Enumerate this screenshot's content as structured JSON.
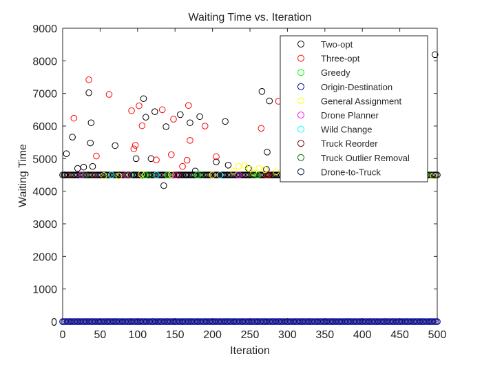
{
  "chart_data": {
    "type": "scatter",
    "title": "Waiting Time vs. Iteration",
    "xlabel": "Iteration",
    "ylabel": "Waiting Time",
    "xlim": [
      0,
      500
    ],
    "ylim": [
      0,
      9000
    ],
    "x_ticks": [
      0,
      50,
      100,
      150,
      200,
      250,
      300,
      350,
      400,
      450,
      500
    ],
    "y_ticks": [
      0,
      1000,
      2000,
      3000,
      4000,
      5000,
      6000,
      7000,
      8000,
      9000
    ],
    "grid": false,
    "legend_position": "top-right",
    "series": [
      {
        "name": "Two-opt",
        "color": "#000000",
        "marker": "circle-open",
        "points": [
          [
            5,
            5150
          ],
          [
            13,
            5660
          ],
          [
            20,
            4700
          ],
          [
            28,
            4740
          ],
          [
            35,
            7020
          ],
          [
            37,
            5480
          ],
          [
            38,
            6100
          ],
          [
            40,
            4760
          ],
          [
            70,
            5400
          ],
          [
            98,
            5000
          ],
          [
            108,
            6840
          ],
          [
            111,
            6270
          ],
          [
            118,
            5000
          ],
          [
            123,
            6440
          ],
          [
            135,
            4170
          ],
          [
            138,
            5980
          ],
          [
            157,
            6350
          ],
          [
            170,
            6100
          ],
          [
            177,
            4620
          ],
          [
            183,
            6290
          ],
          [
            205,
            4900
          ],
          [
            217,
            6140
          ],
          [
            221,
            4800
          ],
          [
            248,
            4700
          ],
          [
            266,
            7060
          ],
          [
            272,
            4670
          ],
          [
            273,
            5200
          ],
          [
            276,
            6770
          ],
          [
            497,
            8190
          ]
        ]
      },
      {
        "name": "Three-opt",
        "color": "#ff0000",
        "marker": "circle-open",
        "points": [
          [
            15,
            6240
          ],
          [
            35,
            7420
          ],
          [
            45,
            5080
          ],
          [
            62,
            6970
          ],
          [
            92,
            6470
          ],
          [
            95,
            5300
          ],
          [
            97,
            5410
          ],
          [
            102,
            6620
          ],
          [
            106,
            6010
          ],
          [
            125,
            4960
          ],
          [
            133,
            6500
          ],
          [
            145,
            5120
          ],
          [
            148,
            6210
          ],
          [
            160,
            4760
          ],
          [
            166,
            4950
          ],
          [
            168,
            6630
          ],
          [
            170,
            5560
          ],
          [
            190,
            6000
          ],
          [
            205,
            5060
          ],
          [
            265,
            5930
          ],
          [
            288,
            6760
          ],
          [
            273,
            4500
          ]
        ]
      },
      {
        "name": "Greedy",
        "color": "#00ff00",
        "marker": "circle-open",
        "points": [
          [
            90,
            4500
          ],
          [
            110,
            4500
          ],
          [
            140,
            4500
          ],
          [
            180,
            4500
          ],
          [
            260,
            4500
          ],
          [
            300,
            4500
          ],
          [
            345,
            4500
          ],
          [
            380,
            4500
          ],
          [
            420,
            4500
          ],
          [
            460,
            4500
          ]
        ]
      },
      {
        "name": "Origin-Destination",
        "color": "#000099",
        "marker": "circle-open",
        "points": [
          [
            0,
            0
          ],
          [
            10,
            0
          ],
          [
            20,
            0
          ],
          [
            30,
            0
          ],
          [
            40,
            0
          ],
          [
            50,
            0
          ],
          [
            60,
            0
          ],
          [
            70,
            0
          ],
          [
            80,
            0
          ],
          [
            90,
            0
          ],
          [
            100,
            0
          ],
          [
            110,
            0
          ],
          [
            120,
            0
          ],
          [
            130,
            0
          ],
          [
            140,
            0
          ],
          [
            150,
            0
          ],
          [
            160,
            0
          ],
          [
            170,
            0
          ],
          [
            180,
            0
          ],
          [
            190,
            0
          ],
          [
            200,
            0
          ],
          [
            210,
            0
          ],
          [
            220,
            0
          ],
          [
            230,
            0
          ],
          [
            240,
            0
          ],
          [
            250,
            0
          ],
          [
            260,
            0
          ],
          [
            270,
            0
          ],
          [
            280,
            0
          ],
          [
            290,
            0
          ],
          [
            300,
            0
          ],
          [
            310,
            0
          ],
          [
            320,
            0
          ],
          [
            330,
            0
          ],
          [
            340,
            0
          ],
          [
            350,
            0
          ],
          [
            360,
            0
          ],
          [
            370,
            0
          ],
          [
            380,
            0
          ],
          [
            390,
            0
          ],
          [
            400,
            0
          ],
          [
            410,
            0
          ],
          [
            420,
            0
          ],
          [
            430,
            0
          ],
          [
            440,
            0
          ],
          [
            450,
            0
          ],
          [
            460,
            0
          ],
          [
            470,
            0
          ],
          [
            480,
            0
          ],
          [
            490,
            0
          ],
          [
            500,
            0
          ]
        ]
      },
      {
        "name": "General Assignment",
        "color": "#ffff00",
        "marker": "circle-open",
        "points": [
          [
            55,
            4480
          ],
          [
            75,
            4470
          ],
          [
            105,
            4520
          ],
          [
            145,
            4510
          ],
          [
            200,
            4500
          ],
          [
            228,
            4620
          ],
          [
            235,
            4760
          ],
          [
            243,
            4790
          ],
          [
            250,
            4680
          ],
          [
            255,
            4560
          ],
          [
            262,
            4700
          ],
          [
            270,
            4660
          ],
          [
            285,
            4600
          ],
          [
            300,
            4560
          ],
          [
            320,
            4540
          ],
          [
            340,
            4550
          ],
          [
            360,
            4520
          ],
          [
            380,
            4530
          ],
          [
            400,
            4520
          ],
          [
            420,
            4510
          ],
          [
            445,
            4500
          ],
          [
            470,
            4420
          ],
          [
            495,
            4470
          ]
        ]
      },
      {
        "name": "Drone Planner",
        "color": "#ff00ff",
        "marker": "circle-open",
        "points": [
          [
            25,
            4500
          ],
          [
            85,
            4500
          ],
          [
            150,
            4500
          ],
          [
            235,
            4500
          ],
          [
            315,
            4500
          ],
          [
            405,
            4500
          ]
        ]
      },
      {
        "name": "Wild Change",
        "color": "#00ffff",
        "marker": "circle-open",
        "points": [
          [
            65,
            4500
          ],
          [
            125,
            4500
          ],
          [
            210,
            4500
          ],
          [
            330,
            4500
          ],
          [
            440,
            4500
          ]
        ]
      },
      {
        "name": "Truck Reorder",
        "color": "#660000",
        "marker": "circle-open",
        "points": [
          [
            8,
            4500
          ],
          [
            42,
            4500
          ],
          [
            88,
            4500
          ],
          [
            155,
            4500
          ],
          [
            205,
            4500
          ],
          [
            275,
            4500
          ],
          [
            390,
            4500
          ],
          [
            480,
            4500
          ]
        ]
      },
      {
        "name": "Truck Outlier Removal",
        "color": "#006600",
        "marker": "circle-open",
        "points": [
          [
            30,
            4500
          ],
          [
            115,
            4500
          ],
          [
            185,
            4500
          ],
          [
            255,
            4500
          ],
          [
            350,
            4500
          ],
          [
            430,
            4500
          ],
          [
            492,
            4500
          ]
        ]
      },
      {
        "name": "Drone-to-Truck",
        "color": "#000033",
        "marker": "circle-open",
        "points": [
          [
            3,
            4500
          ],
          [
            50,
            4500
          ],
          [
            95,
            4500
          ],
          [
            165,
            4500
          ],
          [
            215,
            4500
          ],
          [
            305,
            4500
          ],
          [
            375,
            4500
          ],
          [
            455,
            4500
          ],
          [
            498,
            4500
          ]
        ]
      }
    ],
    "dense_bands": [
      {
        "series": "Two-opt",
        "y": 4500,
        "x_from": 0,
        "x_to": 500
      },
      {
        "series": "Origin-Destination",
        "y": 0,
        "x_from": 0,
        "x_to": 500
      }
    ]
  }
}
